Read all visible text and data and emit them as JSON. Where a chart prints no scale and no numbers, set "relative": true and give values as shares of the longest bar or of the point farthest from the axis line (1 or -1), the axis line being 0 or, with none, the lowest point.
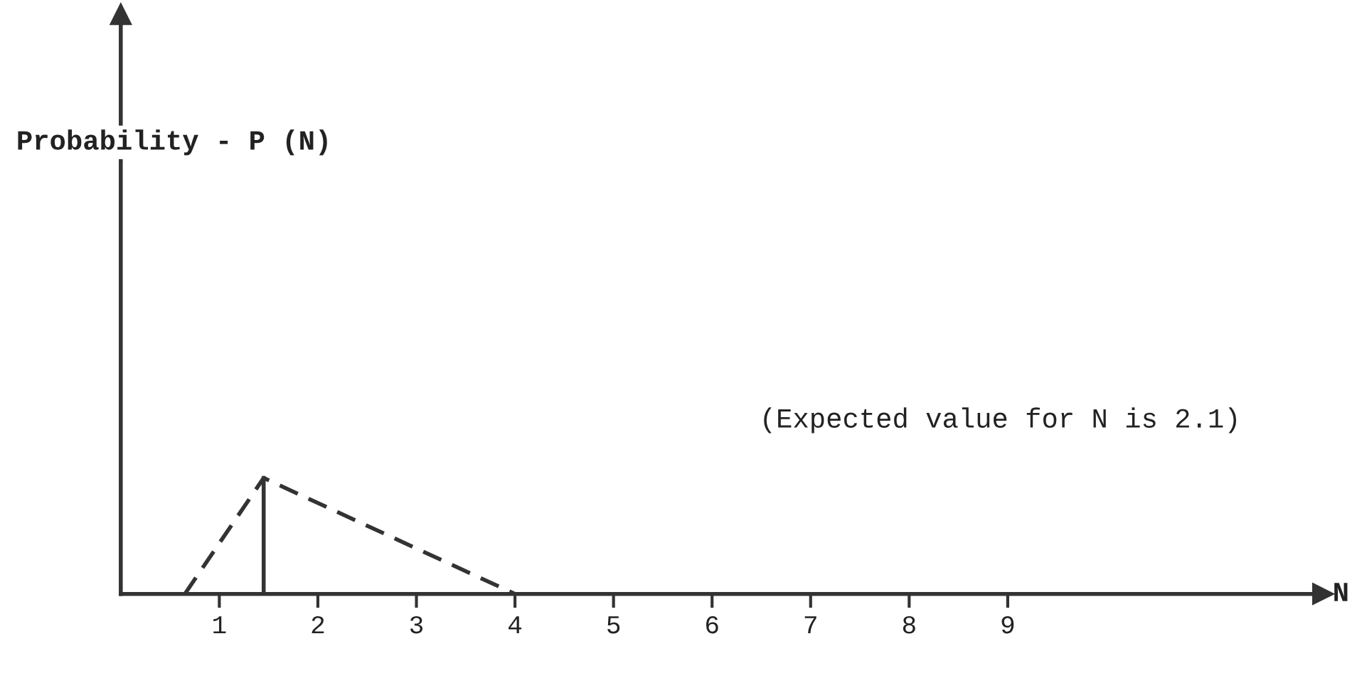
{
  "chart_data": {
    "type": "line",
    "relative": true,
    "xlabel": "N",
    "annotations": [
      "Probability - P (N)",
      "(Expected value for N is 2.1)"
    ],
    "xlim": [
      0,
      12.2
    ],
    "xticks": [
      1,
      2,
      3,
      4,
      5,
      6,
      7,
      8,
      9
    ],
    "tick_labels": "x",
    "grid": false,
    "series": [
      {
        "color": "#333333",
        "line_style": "dashed",
        "x": [
          0.65,
          1.45,
          4
        ],
        "values": [
          0,
          1,
          0
        ]
      },
      {
        "color": "#333333",
        "line_style": "solid",
        "x": [
          1.45,
          1.45
        ],
        "values": [
          0,
          1
        ]
      }
    ]
  }
}
